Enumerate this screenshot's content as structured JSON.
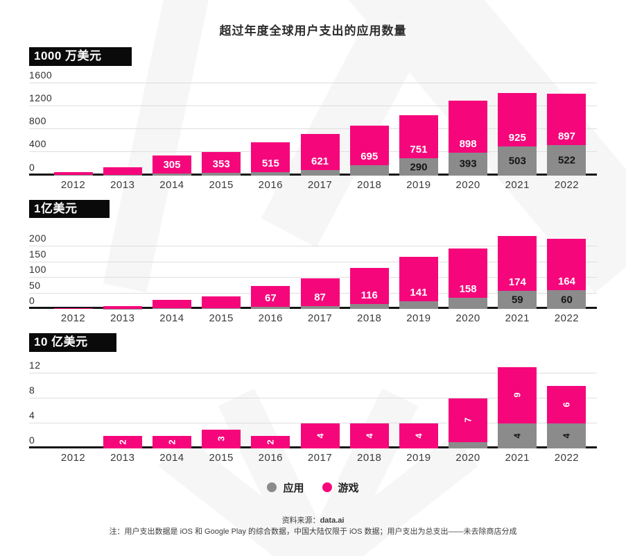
{
  "page": {
    "title": "超过年度全球用户支出的应用数量",
    "legend": {
      "apps": "应用",
      "games": "游戏"
    },
    "footer": {
      "source_label": "资料来源：",
      "source_value": "data.ai",
      "note": "注：用户支出数据是 iOS 和 Google Play 的综合数据，中国大陆仅限于 iOS 数据；用户支出为总支出——未去除商店分成"
    },
    "colors": {
      "games": "#F5067B",
      "apps": "#8B8B8B",
      "label_on_games": "#FFFFFF",
      "label_on_apps": "#141414",
      "title_box_bg": "#0A0A0A",
      "title_box_text": "#FFFFFF"
    }
  },
  "chart_data": [
    {
      "type": "bar",
      "stacked": true,
      "title": "1000 万美元",
      "categories": [
        "2012",
        "2013",
        "2014",
        "2015",
        "2016",
        "2017",
        "2018",
        "2019",
        "2020",
        "2021",
        "2022"
      ],
      "series": [
        {
          "name": "应用",
          "color_key": "apps",
          "values": [
            5,
            10,
            35,
            45,
            55,
            95,
            170,
            290,
            393,
            503,
            522
          ],
          "labels": [
            "",
            "",
            "",
            "",
            "",
            "",
            "",
            "290",
            "393",
            "503",
            "522"
          ]
        },
        {
          "name": "游戏",
          "color_key": "games",
          "values": [
            48,
            130,
            305,
            353,
            515,
            621,
            695,
            751,
            898,
            925,
            897
          ],
          "labels": [
            "",
            "",
            "305",
            "353",
            "515",
            "621",
            "695",
            "751",
            "898",
            "925",
            "897"
          ]
        }
      ],
      "yticks": [
        0,
        400,
        800,
        1200,
        1600
      ],
      "ymax": 1600,
      "grid": true,
      "legend_position": "bottom-shared"
    },
    {
      "type": "bar",
      "stacked": true,
      "title": "1亿美元",
      "categories": [
        "2012",
        "2013",
        "2014",
        "2015",
        "2016",
        "2017",
        "2018",
        "2019",
        "2020",
        "2021",
        "2022"
      ],
      "series": [
        {
          "name": "应用",
          "color_key": "apps",
          "values": [
            0,
            1,
            2,
            3,
            6,
            10,
            15,
            25,
            35,
            59,
            60
          ],
          "labels": [
            "",
            "",
            "",
            "",
            "",
            "",
            "",
            "",
            "",
            "59",
            "60"
          ]
        },
        {
          "name": "游戏",
          "color_key": "games",
          "values": [
            2,
            9,
            28,
            38,
            67,
            87,
            116,
            141,
            158,
            174,
            164
          ],
          "labels": [
            "",
            "",
            "",
            "",
            "67",
            "87",
            "116",
            "141",
            "158",
            "174",
            "164"
          ]
        }
      ],
      "yticks": [
        0,
        50,
        100,
        150,
        200
      ],
      "ymax": 200,
      "grid": true,
      "legend_position": "bottom-shared"
    },
    {
      "type": "bar",
      "stacked": true,
      "title": "10 亿美元",
      "categories": [
        "2012",
        "2013",
        "2014",
        "2015",
        "2016",
        "2017",
        "2018",
        "2019",
        "2020",
        "2021",
        "2022"
      ],
      "series": [
        {
          "name": "应用",
          "color_key": "apps",
          "values": [
            0,
            0,
            0,
            0,
            0,
            0,
            0,
            0,
            1,
            4,
            4
          ],
          "labels": [
            "",
            "",
            "",
            "",
            "",
            "",
            "",
            "",
            "",
            "4",
            "4"
          ]
        },
        {
          "name": "游戏",
          "color_key": "games",
          "values": [
            0,
            2,
            2,
            3,
            2,
            4,
            4,
            4,
            7,
            9,
            6
          ],
          "labels": [
            "",
            "2",
            "2",
            "3",
            "2",
            "4",
            "4",
            "4",
            "7",
            "9",
            "6"
          ]
        }
      ],
      "yticks": [
        0,
        4,
        8,
        12
      ],
      "ymax": 12,
      "grid": true,
      "legend_position": "bottom-shared"
    }
  ]
}
